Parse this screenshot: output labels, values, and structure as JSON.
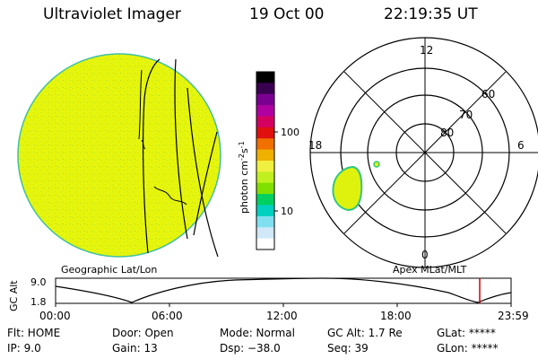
{
  "header": {
    "instrument": "Ultraviolet Imager",
    "date": "19 Oct 00",
    "time": "22:19:35 UT"
  },
  "colorbar": {
    "unit_label": "photon cm",
    "unit_exp1": "-2",
    "unit_s": "s",
    "unit_exp2": "-1",
    "tick_100": "100",
    "tick_10": "10",
    "colors": [
      "#000000",
      "#3a0050",
      "#7a0090",
      "#b000a0",
      "#d40060",
      "#e01010",
      "#f07000",
      "#f0b000",
      "#f0f040",
      "#c0f020",
      "#80e000",
      "#00d060",
      "#00d0c0",
      "#80e0f0",
      "#d0e8f8",
      "#ffffff"
    ]
  },
  "left_panel": {
    "caption": "Geographic Lat/Lon",
    "disk_color": "#e6f50c"
  },
  "right_panel": {
    "caption": "Apex MLat/MLT",
    "mlt_labels": {
      "top": "12",
      "left": "18",
      "right": "6",
      "bottom": "0"
    },
    "lat_labels": {
      "lat60": "60",
      "lat70": "70",
      "lat80": "80"
    }
  },
  "altitude_plot": {
    "ylabel": "GC Alt",
    "ytick_top": "9.0",
    "ytick_bottom": "1.8",
    "xticks": [
      "00:00",
      "06:00",
      "12:00",
      "18:00",
      "23:59"
    ],
    "marker_color": "#d00000"
  },
  "status": {
    "flt": "Flt: HOME",
    "ip": "IP:  9.0",
    "door": "Door: Open",
    "gain": "Gain: 13",
    "mode": "Mode: Normal",
    "dsp": "Dsp:  −38.0",
    "gc_alt": "GC Alt: 1.7 Re",
    "seq": "Seq: 39",
    "glat": "GLat: *****",
    "glon": "GLon: *****"
  }
}
